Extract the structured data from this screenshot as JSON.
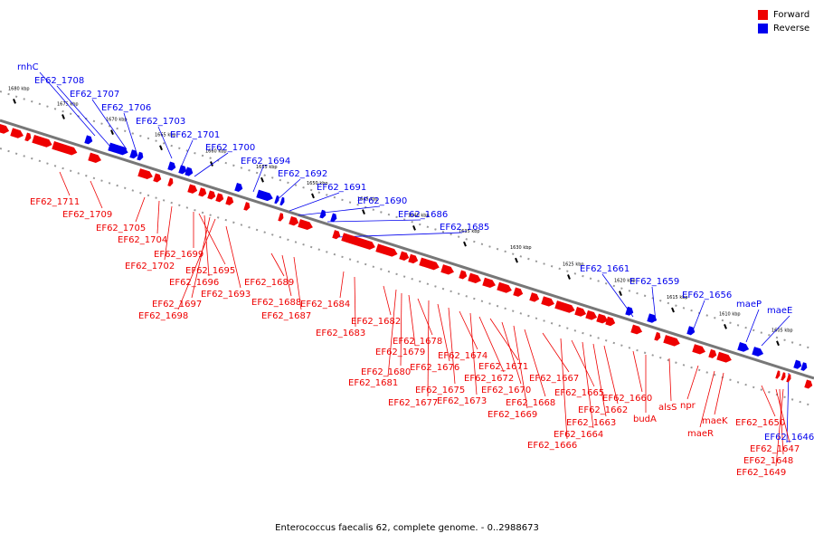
{
  "legend": [
    {
      "label": "Forward",
      "color": "#ee0000"
    },
    {
      "label": "Reverse",
      "color": "#0000ee"
    }
  ],
  "caption": "Enterococcus faecalis 62, complete genome. - 0..2988673",
  "colors": {
    "forward": "#ee0000",
    "reverse": "#0000ee",
    "backbone": "#777777"
  },
  "ticks": [
    "1605 kbp",
    "1610 kbp",
    "1615 kbp",
    "1620 kbp",
    "1625 kbp",
    "1630 kbp",
    "1635 kbp",
    "1640 kbp",
    "1645 kbp",
    "1650 kbp",
    "1655 kbp",
    "1660 kbp",
    "1665 kbp",
    "1670 kbp",
    "1675 kbp",
    "1680 kbp"
  ],
  "genes_forward": [
    "EF62_1711",
    "EF62_1709",
    "EF62_1705",
    "EF62_1704",
    "EF62_1702",
    "EF62_1699",
    "EF62_1698",
    "EF62_1697",
    "EF62_1696",
    "EF62_1695",
    "EF62_1693",
    "EF62_1689",
    "EF62_1688",
    "EF62_1687",
    "EF62_1684",
    "EF62_1683",
    "EF62_1682",
    "EF62_1681",
    "EF62_1680",
    "EF62_1679",
    "EF62_1678",
    "EF62_1677",
    "EF62_1676",
    "EF62_1675",
    "EF62_1674",
    "EF62_1673",
    "EF62_1672",
    "EF62_1671",
    "EF62_1670",
    "EF62_1669",
    "EF62_1668",
    "EF62_1667",
    "EF62_1666",
    "EF62_1665",
    "EF62_1664",
    "EF62_1663",
    "EF62_1662",
    "EF62_1660",
    "budA",
    "alsS",
    "npr",
    "maeR",
    "maeK",
    "EF62_1650",
    "EF62_1647",
    "EF62_1648",
    "EF62_1649"
  ],
  "genes_reverse": [
    "rnhC",
    "EF62_1708",
    "EF62_1707",
    "EF62_1706",
    "EF62_1703",
    "EF62_1701",
    "EF62_1700",
    "EF62_1694",
    "EF62_1692",
    "EF62_1691",
    "EF62_1690",
    "EF62_1686",
    "EF62_1685",
    "EF62_1661",
    "EF62_1659",
    "EF62_1656",
    "maeP",
    "maeE",
    "EF62_1646"
  ]
}
